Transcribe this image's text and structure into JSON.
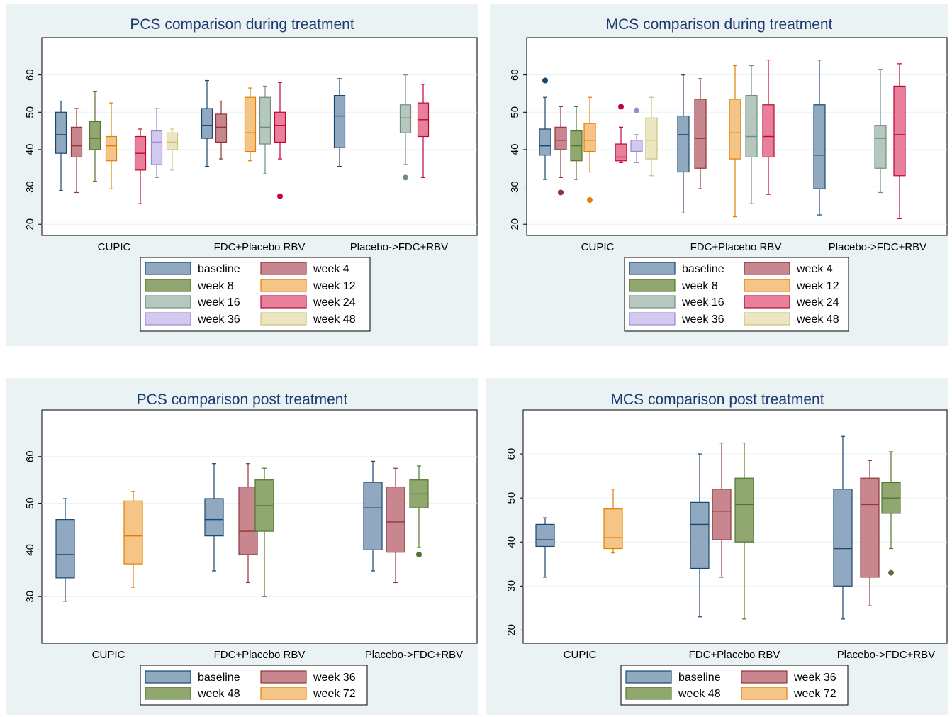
{
  "chart_data": [
    {
      "type": "box",
      "title": "PCS comparison during treatment",
      "categories": [
        "CUPIC",
        "FDC+Placebo RBV",
        "Placebo->FDC+RBV"
      ],
      "yticks": [
        20,
        30,
        40,
        50,
        60
      ],
      "ylim": [
        17,
        70
      ],
      "grid": true,
      "legend": "bottom",
      "series": [
        {
          "name": "baseline",
          "color": "#90a8c0",
          "stroke": "#1a476f",
          "boxes": [
            [
              29,
              39,
              44,
              50,
              53
            ],
            [
              35.5,
              43,
              46.5,
              51,
              58.5
            ],
            [
              35.5,
              40.5,
              49,
              54.5,
              59
            ]
          ],
          "outliers": [
            [],
            [],
            []
          ]
        },
        {
          "name": "week 4",
          "color": "#c8868e",
          "stroke": "#90353b",
          "boxes": [
            [
              28.5,
              38,
              41,
              46,
              51
            ],
            [
              37.5,
              42,
              46,
              49.5,
              53
            ],
            null
          ],
          "outliers": [
            [],
            [],
            []
          ]
        },
        {
          "name": "week 8",
          "color": "#90a870",
          "stroke": "#55752f",
          "boxes": [
            [
              31.5,
              40,
              43,
              47.5,
              55.5
            ],
            null,
            null
          ],
          "outliers": [
            [],
            [],
            []
          ]
        },
        {
          "name": "week 12",
          "color": "#f5c587",
          "stroke": "#e37e00",
          "boxes": [
            [
              29.5,
              37,
              41,
              43.5,
              52.5
            ],
            [
              37,
              39.5,
              44.5,
              54,
              56.5
            ],
            null
          ],
          "outliers": [
            [],
            [],
            []
          ]
        },
        {
          "name": "week 16",
          "color": "#b6c8bd",
          "stroke": "#6e8e84",
          "boxes": [
            null,
            [
              33.5,
              41.5,
              46,
              54,
              57
            ],
            [
              36,
              44.5,
              48.5,
              52,
              60
            ]
          ],
          "outliers": [
            [],
            [],
            [
              32.5
            ]
          ]
        },
        {
          "name": "week 24",
          "color": "#e8809b",
          "stroke": "#c10534",
          "boxes": [
            [
              25.5,
              34.5,
              39,
              43.5,
              45.5
            ],
            [
              37.5,
              42,
              46.5,
              50,
              58
            ],
            [
              32.5,
              43.5,
              48,
              52.5,
              57.5
            ]
          ],
          "outliers": [
            [],
            [
              27.5
            ],
            []
          ]
        },
        {
          "name": "week 36",
          "color": "#d3c8f0",
          "stroke": "#938dd2",
          "boxes": [
            [
              32.5,
              36,
              42,
              45,
              51
            ],
            null,
            null
          ],
          "outliers": [
            [],
            [],
            []
          ]
        },
        {
          "name": "week 48",
          "color": "#ebe5c0",
          "stroke": "#cac27e",
          "boxes": [
            [
              34.5,
              40,
              42,
              44.5,
              45.5
            ],
            null,
            null
          ],
          "outliers": [
            [],
            [],
            []
          ]
        }
      ]
    },
    {
      "type": "box",
      "title": "MCS comparison during treatment",
      "categories": [
        "CUPIC",
        "FDC+Placebo RBV",
        "Placebo->FDC+RBV"
      ],
      "yticks": [
        20,
        30,
        40,
        50,
        60
      ],
      "ylim": [
        17,
        70
      ],
      "grid": true,
      "legend": "bottom",
      "series": [
        {
          "name": "baseline",
          "color": "#90a8c0",
          "stroke": "#1a476f",
          "boxes": [
            [
              32,
              38.5,
              41,
              45.5,
              54
            ],
            [
              23,
              34,
              44,
              49,
              60
            ],
            [
              22.5,
              29.5,
              38.5,
              52,
              64
            ]
          ],
          "outliers": [
            [
              58.5
            ],
            [],
            []
          ]
        },
        {
          "name": "week 4",
          "color": "#c8868e",
          "stroke": "#90353b",
          "boxes": [
            [
              32.5,
              40,
              42.5,
              46,
              51.5
            ],
            [
              29.5,
              35,
              43,
              53.5,
              59
            ],
            null
          ],
          "outliers": [
            [
              28.5
            ],
            [],
            []
          ]
        },
        {
          "name": "week 8",
          "color": "#90a870",
          "stroke": "#55752f",
          "boxes": [
            [
              32,
              37,
              41,
              45,
              51.5
            ],
            null,
            null
          ],
          "outliers": [
            [],
            [],
            []
          ]
        },
        {
          "name": "week 12",
          "color": "#f5c587",
          "stroke": "#e37e00",
          "boxes": [
            [
              34,
              39.5,
              42.5,
              47,
              54
            ],
            [
              22,
              37.5,
              44.5,
              53.5,
              62.5
            ],
            null
          ],
          "outliers": [
            [
              26.5
            ],
            [],
            []
          ]
        },
        {
          "name": "week 16",
          "color": "#b6c8bd",
          "stroke": "#6e8e84",
          "boxes": [
            null,
            [
              25.5,
              38,
              43.5,
              54.5,
              62.5
            ],
            [
              28.5,
              35,
              43,
              46.5,
              61.5
            ]
          ],
          "outliers": [
            [],
            [],
            []
          ]
        },
        {
          "name": "week 24",
          "color": "#e8809b",
          "stroke": "#c10534",
          "boxes": [
            [
              36.5,
              37,
              38,
              41.5,
              46
            ],
            [
              28,
              38,
              43.5,
              52,
              64
            ],
            [
              21.5,
              33,
              44,
              57,
              63
            ]
          ],
          "outliers": [
            [
              51.5
            ],
            [],
            []
          ]
        },
        {
          "name": "week 36",
          "color": "#d3c8f0",
          "stroke": "#938dd2",
          "boxes": [
            [
              36.5,
              39.5,
              39.5,
              42.5,
              44
            ],
            null,
            null
          ],
          "outliers": [
            [
              50.5
            ],
            [],
            []
          ]
        },
        {
          "name": "week 48",
          "color": "#ebe5c0",
          "stroke": "#cac27e",
          "boxes": [
            [
              33,
              37.5,
              42.5,
              48.5,
              54
            ],
            null,
            null
          ],
          "outliers": [
            [],
            [],
            []
          ]
        }
      ]
    },
    {
      "type": "box",
      "title": "PCS comparison post treatment",
      "categories": [
        "CUPIC",
        "FDC+Placebo RBV",
        "Placebo->FDC+RBV"
      ],
      "yticks": [
        30,
        40,
        50,
        60
      ],
      "ylim": [
        20,
        70
      ],
      "grid": true,
      "legend": "bottom",
      "series": [
        {
          "name": "baseline",
          "color": "#90a8c0",
          "stroke": "#1a476f",
          "boxes": [
            [
              29,
              34,
              39,
              46.5,
              51
            ],
            [
              35.5,
              43,
              46.5,
              51,
              58.5
            ],
            [
              35.5,
              40,
              49,
              54.5,
              59
            ]
          ],
          "outliers": [
            [],
            [],
            []
          ]
        },
        {
          "name": "week 36",
          "color": "#c8868e",
          "stroke": "#90353b",
          "boxes": [
            null,
            [
              33,
              39,
              44,
              53.5,
              58.5
            ],
            [
              33,
              39.5,
              46,
              53.5,
              57.5
            ]
          ],
          "outliers": [
            [],
            [],
            []
          ]
        },
        {
          "name": "week 48",
          "color": "#90a870",
          "stroke": "#55752f",
          "boxes": [
            null,
            [
              30,
              44,
              49.5,
              55,
              57.5
            ],
            [
              40.5,
              49,
              52,
              55,
              58
            ]
          ],
          "outliers": [
            [],
            [],
            [
              39
            ]
          ]
        },
        {
          "name": "week 72",
          "color": "#f5c587",
          "stroke": "#e37e00",
          "boxes": [
            [
              32,
              37,
              43,
              50.5,
              52.5
            ],
            null,
            null
          ],
          "outliers": [
            [],
            [],
            []
          ]
        }
      ]
    },
    {
      "type": "box",
      "title": "MCS comparison post treatment",
      "categories": [
        "CUPIC",
        "FDC+Placebo RBV",
        "Placebo->FDC+RBV"
      ],
      "yticks": [
        20,
        30,
        40,
        50,
        60
      ],
      "ylim": [
        17,
        70
      ],
      "grid": true,
      "legend": "bottom",
      "series": [
        {
          "name": "baseline",
          "color": "#90a8c0",
          "stroke": "#1a476f",
          "boxes": [
            [
              32,
              39,
              40.5,
              44,
              45.5
            ],
            [
              23,
              34,
              44,
              49,
              60
            ],
            [
              22.5,
              30,
              38.5,
              52,
              64
            ]
          ],
          "outliers": [
            [],
            [],
            []
          ]
        },
        {
          "name": "week 36",
          "color": "#c8868e",
          "stroke": "#90353b",
          "boxes": [
            null,
            [
              32,
              40.5,
              47,
              52,
              62.5
            ],
            [
              25.5,
              32,
              48.5,
              54.5,
              58.5
            ]
          ],
          "outliers": [
            [],
            [],
            []
          ]
        },
        {
          "name": "week 48",
          "color": "#90a870",
          "stroke": "#55752f",
          "boxes": [
            null,
            [
              22.5,
              40,
              48.5,
              54.5,
              62.5
            ],
            [
              38.5,
              46.5,
              50,
              53.5,
              60.5
            ]
          ],
          "outliers": [
            [],
            [],
            [
              33
            ]
          ]
        },
        {
          "name": "week 72",
          "color": "#f5c587",
          "stroke": "#e37e00",
          "boxes": [
            [
              37.5,
              38.5,
              41,
              47.5,
              52
            ],
            null,
            null
          ],
          "outliers": [
            [],
            [],
            []
          ]
        }
      ]
    }
  ]
}
